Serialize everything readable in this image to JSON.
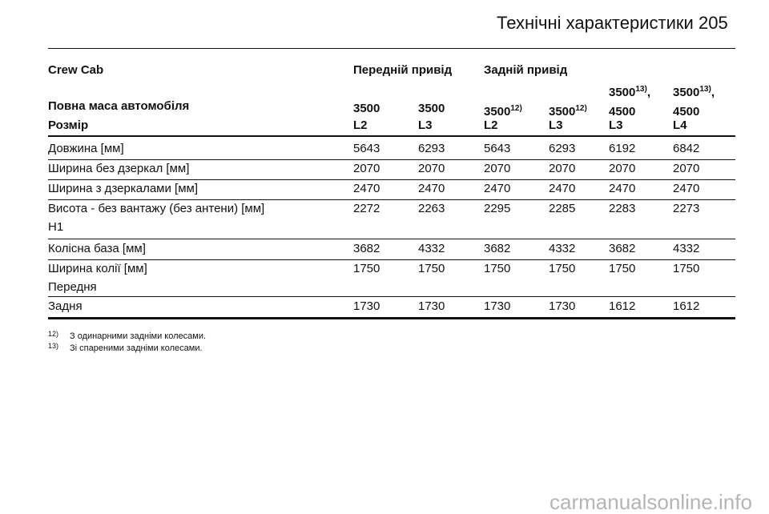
{
  "header": {
    "title": "Технічні характеристики",
    "page": "205"
  },
  "table": {
    "group_row": {
      "label": "Crew Cab",
      "groups": [
        "Передній привід",
        "Задній привід"
      ]
    },
    "mass_row": {
      "label": "Повна маса автомобіля",
      "cells": [
        {
          "text": "3500"
        },
        {
          "text": "3500"
        },
        {
          "text": "3500",
          "sup": "12)"
        },
        {
          "text": "3500",
          "sup": "12)"
        },
        {
          "text": "3500",
          "sup": "13)",
          "after": ",",
          "line2": "4500"
        },
        {
          "text": "3500",
          "sup": "13)",
          "after": ",",
          "line2": "4500"
        }
      ]
    },
    "size_row": {
      "label": "Розмір",
      "cells": [
        "L2",
        "L3",
        "L2",
        "L3",
        "L3",
        "L4"
      ]
    },
    "rows": [
      {
        "label": "Довжина [мм]",
        "values": [
          "5643",
          "6293",
          "5643",
          "6293",
          "6192",
          "6842"
        ]
      },
      {
        "label": "Ширина без дзеркал [мм]",
        "values": [
          "2070",
          "2070",
          "2070",
          "2070",
          "2070",
          "2070"
        ]
      },
      {
        "label": "Ширина з дзеркалами [мм]",
        "values": [
          "2470",
          "2470",
          "2470",
          "2470",
          "2470",
          "2470"
        ]
      },
      {
        "label": "Висота - без вантажу (без антени) [мм]",
        "sublabel": "H1",
        "values": [
          "2272",
          "2263",
          "2295",
          "2285",
          "2283",
          "2273"
        ]
      },
      {
        "label": "Колісна база [мм]",
        "values": [
          "3682",
          "4332",
          "3682",
          "4332",
          "3682",
          "4332"
        ]
      },
      {
        "label": "Ширина колії [мм]",
        "sublabel": "Передня",
        "values": [
          "1750",
          "1750",
          "1750",
          "1750",
          "1750",
          "1750"
        ]
      },
      {
        "label": "Задня",
        "values": [
          "1730",
          "1730",
          "1730",
          "1730",
          "1612",
          "1612"
        ]
      }
    ]
  },
  "footnotes": [
    {
      "mark": "12)",
      "text": "З одинарними задніми колесами."
    },
    {
      "mark": "13)",
      "text": "Зі спареними задніми колесами."
    }
  ],
  "watermark": "carmanualsonline.info"
}
